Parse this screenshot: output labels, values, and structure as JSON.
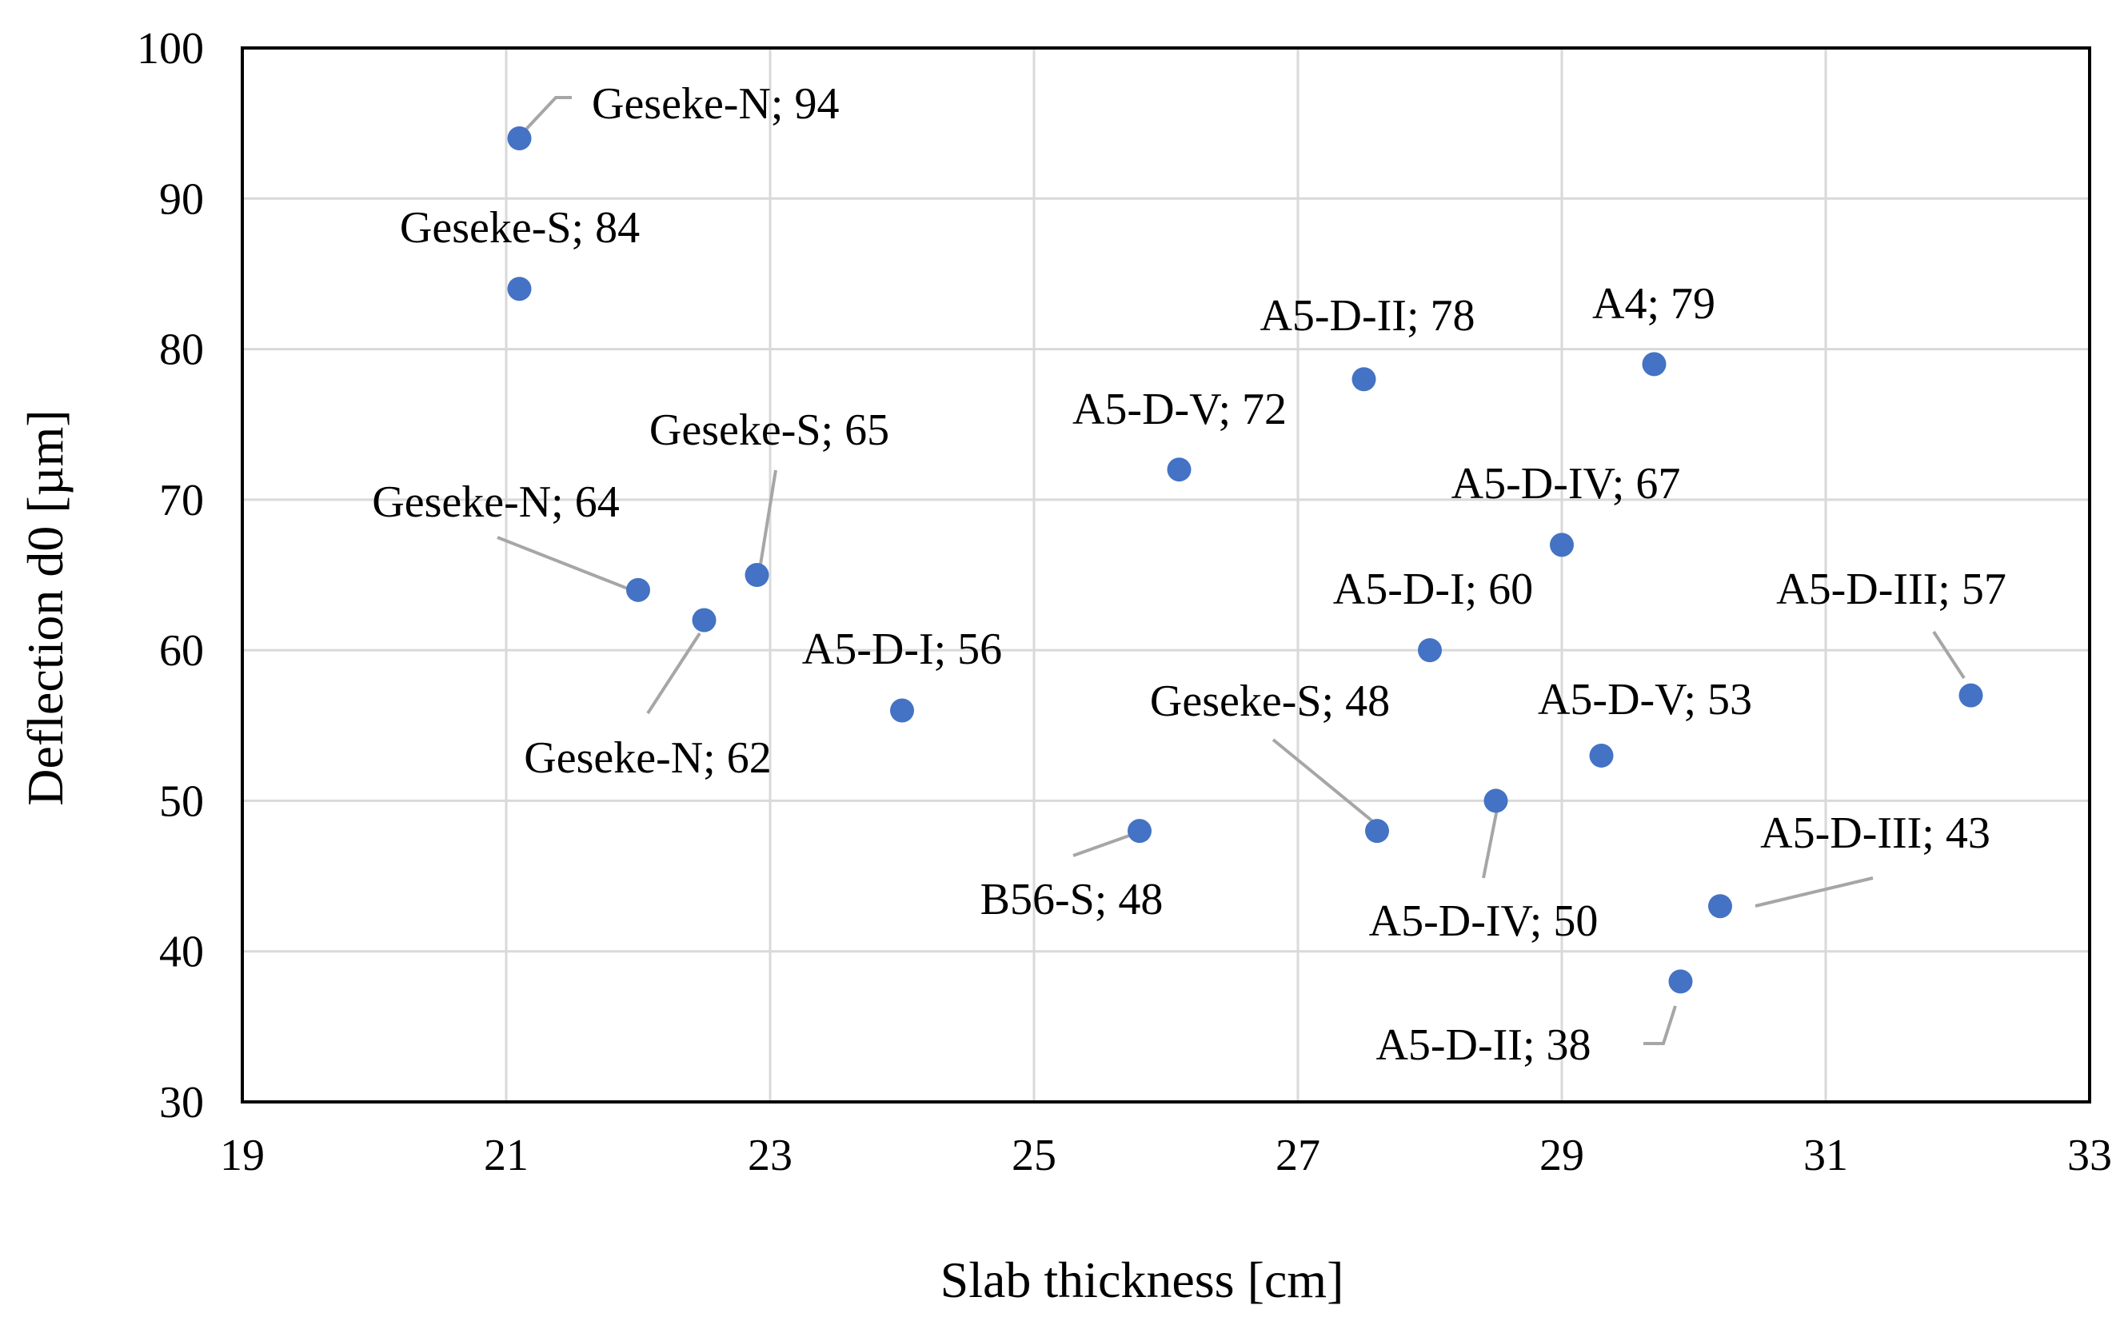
{
  "chart_data": {
    "type": "scatter",
    "title": "",
    "xlabel": "Slab thickness  [cm]",
    "ylabel": "Deflection d0 [µm]",
    "xlim": [
      19,
      33
    ],
    "ylim": [
      30,
      100
    ],
    "x_ticks": [
      19,
      21,
      23,
      25,
      27,
      29,
      31,
      33
    ],
    "y_ticks": [
      30,
      40,
      50,
      60,
      70,
      80,
      90,
      100
    ],
    "grid": true,
    "legend": "none",
    "marker_color": "#4472c4",
    "points": [
      {
        "label": "Geseke-N; 94",
        "x": 21.1,
        "y": 94
      },
      {
        "label": "Geseke-S; 84",
        "x": 21.1,
        "y": 84
      },
      {
        "label": "Geseke-N; 64",
        "x": 22.0,
        "y": 64
      },
      {
        "label": "Geseke-N; 62",
        "x": 22.5,
        "y": 62
      },
      {
        "label": "Geseke-S; 65",
        "x": 22.9,
        "y": 65
      },
      {
        "label": "A5-D-I; 56",
        "x": 24.0,
        "y": 56
      },
      {
        "label": "B56-S; 48",
        "x": 25.8,
        "y": 48
      },
      {
        "label": "A5-D-V; 72",
        "x": 26.1,
        "y": 72
      },
      {
        "label": "A5-D-II; 78",
        "x": 27.5,
        "y": 78
      },
      {
        "label": "Geseke-S; 48",
        "x": 27.6,
        "y": 48
      },
      {
        "label": "A5-D-I; 60",
        "x": 28.0,
        "y": 60
      },
      {
        "label": "A5-D-IV; 50",
        "x": 28.5,
        "y": 50
      },
      {
        "label": "A5-D-IV; 67",
        "x": 29.0,
        "y": 67
      },
      {
        "label": "A5-D-V; 53",
        "x": 29.3,
        "y": 53
      },
      {
        "label": "A4; 79",
        "x": 29.7,
        "y": 79
      },
      {
        "label": "A5-D-II; 38",
        "x": 29.9,
        "y": 38
      },
      {
        "label": "A5-D-III; 43",
        "x": 30.2,
        "y": 43
      },
      {
        "label": "A5-D-III; 57",
        "x": 32.1,
        "y": 57
      }
    ]
  }
}
